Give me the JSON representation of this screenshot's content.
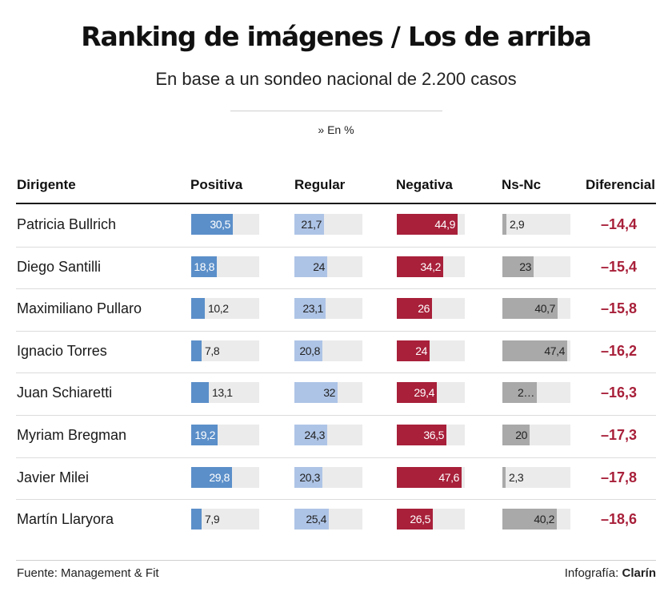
{
  "title": "Ranking de imágenes / Los de arriba",
  "subtitle": "En base a un sondeo nacional de 2.200 casos",
  "unit_note": "» En %",
  "footer": {
    "source": "Fuente: Management & Fit",
    "credit_prefix": "Infografía: ",
    "credit_brand": "Clarín"
  },
  "colors": {
    "positiva": "#5b8fc9",
    "regular": "#aec4e6",
    "negativa": "#a8203a",
    "nsnc": "#a9a9a9",
    "track": "#ebebeb",
    "diferencial": "#a8203a"
  },
  "chart_data": {
    "type": "bar",
    "layout": "horizontal-bars-table",
    "columns": [
      "Dirigente",
      "Positiva",
      "Regular",
      "Negativa",
      "Ns-Nc",
      "Diferencial"
    ],
    "categories": [
      "Patricia Bullrich",
      "Diego Santilli",
      "Maximiliano Pullaro",
      "Ignacio Torres",
      "Juan Schiaretti",
      "Myriam Bregman",
      "Javier Milei",
      "Martín Llaryora"
    ],
    "xlim": [
      0,
      50
    ],
    "series": [
      {
        "name": "Positiva",
        "key": "positiva",
        "values": [
          30.5,
          18.8,
          10.2,
          7.8,
          13.1,
          19.2,
          29.8,
          7.9
        ],
        "labels": [
          "30,5",
          "18,8",
          "10,2",
          "7,8",
          "13,1",
          "19,2",
          "29,8",
          "7,9"
        ]
      },
      {
        "name": "Regular",
        "key": "regular",
        "values": [
          21.7,
          24,
          23.1,
          20.8,
          32,
          24.3,
          20.3,
          25.4
        ],
        "labels": [
          "21,7",
          "24",
          "23,1",
          "20,8",
          "32",
          "24,3",
          "20,3",
          "25,4"
        ]
      },
      {
        "name": "Negativa",
        "key": "negativa",
        "values": [
          44.9,
          34.2,
          26,
          24,
          29.4,
          36.5,
          47.6,
          26.5
        ],
        "labels": [
          "44,9",
          "34,2",
          "26",
          "24",
          "29,4",
          "36,5",
          "47,6",
          "26,5"
        ]
      },
      {
        "name": "Ns-Nc",
        "key": "nsnc",
        "values": [
          2.9,
          23,
          40.7,
          47.4,
          25.5,
          20,
          2.3,
          40.2
        ],
        "labels": [
          "2,9",
          "23",
          "40,7",
          "47,4",
          "2…",
          "20",
          "2,3",
          "40,2"
        ]
      }
    ],
    "diferencial": [
      "–14,4",
      "–15,4",
      "–15,8",
      "–16,2",
      "–16,3",
      "–17,3",
      "–17,8",
      "–18,6"
    ]
  }
}
